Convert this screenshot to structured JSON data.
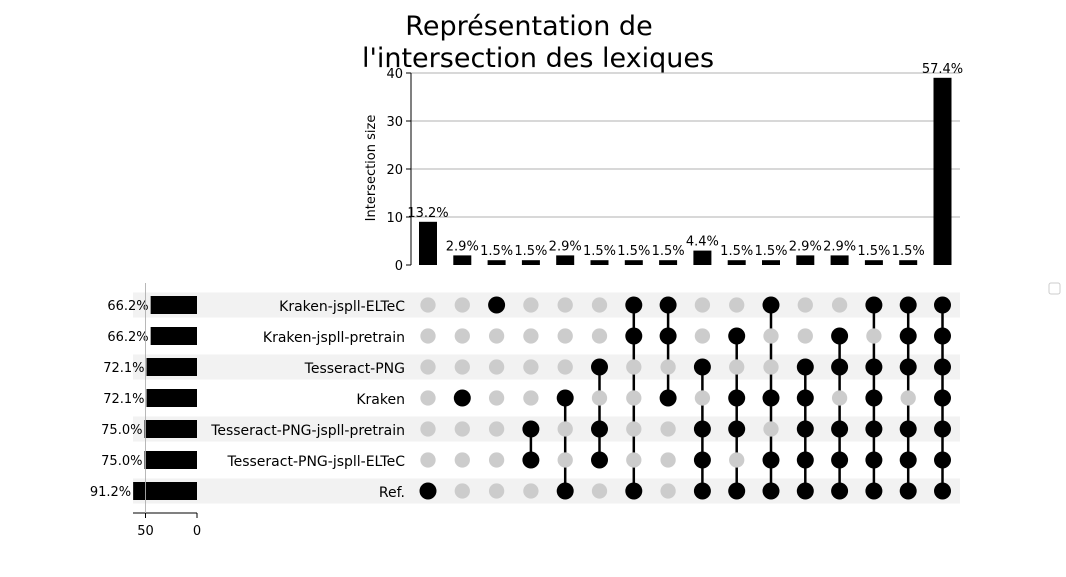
{
  "chart_data": {
    "type": "upset",
    "title": [
      "Représentation de",
      "l'intersection des lexiques"
    ],
    "ylabel": "Intersection size",
    "ylim": [
      0,
      40
    ],
    "yticks": [
      "0",
      "10",
      "20",
      "30",
      "40"
    ],
    "set_size_ticks": [
      "50",
      "0"
    ],
    "grid": true,
    "sets": [
      {
        "name": "Kraken-jspll-ELTeC",
        "size_pct": "66.2%",
        "size": 45
      },
      {
        "name": "Kraken-jspll-pretrain",
        "size_pct": "66.2%",
        "size": 45
      },
      {
        "name": "Tesseract-PNG",
        "size_pct": "72.1%",
        "size": 49
      },
      {
        "name": "Kraken",
        "size_pct": "72.1%",
        "size": 49
      },
      {
        "name": "Tesseract-PNG-jspll-pretrain",
        "size_pct": "75.0%",
        "size": 51
      },
      {
        "name": "Tesseract-PNG-jspll-ELTeC",
        "size_pct": "75.0%",
        "size": 51
      },
      {
        "name": "Ref.",
        "size_pct": "91.2%",
        "size": 62
      }
    ],
    "intersections": [
      {
        "size": 9,
        "label": "13.2%",
        "members": [
          6
        ]
      },
      {
        "size": 2,
        "label": "2.9%",
        "members": [
          3
        ]
      },
      {
        "size": 1,
        "label": "1.5%",
        "members": [
          0
        ]
      },
      {
        "size": 1,
        "label": "1.5%",
        "members": [
          4,
          5
        ]
      },
      {
        "size": 2,
        "label": "2.9%",
        "members": [
          3,
          6
        ]
      },
      {
        "size": 1,
        "label": "1.5%",
        "members": [
          2,
          4,
          5
        ]
      },
      {
        "size": 1,
        "label": "1.5%",
        "members": [
          0,
          1,
          6
        ]
      },
      {
        "size": 1,
        "label": "1.5%",
        "members": [
          0,
          1,
          3
        ]
      },
      {
        "size": 3,
        "label": "4.4%",
        "members": [
          2,
          4,
          5,
          6
        ]
      },
      {
        "size": 1,
        "label": "1.5%",
        "members": [
          1,
          3,
          4,
          6
        ]
      },
      {
        "size": 1,
        "label": "1.5%",
        "members": [
          0,
          3,
          5,
          6
        ]
      },
      {
        "size": 2,
        "label": "2.9%",
        "members": [
          2,
          3,
          4,
          5,
          6
        ]
      },
      {
        "size": 2,
        "label": "2.9%",
        "members": [
          1,
          2,
          4,
          5,
          6
        ]
      },
      {
        "size": 1,
        "label": "1.5%",
        "members": [
          0,
          2,
          3,
          4,
          5,
          6
        ]
      },
      {
        "size": 1,
        "label": "1.5%",
        "members": [
          0,
          1,
          2,
          4,
          5,
          6
        ]
      },
      {
        "size": 39,
        "label": "57.4%",
        "members": [
          0,
          1,
          2,
          3,
          4,
          5,
          6
        ]
      }
    ],
    "colors": {
      "active": "#000000",
      "inactive": "#cccccc",
      "stripe": "#f2f2f2",
      "grid": "#b0b0b0"
    }
  }
}
